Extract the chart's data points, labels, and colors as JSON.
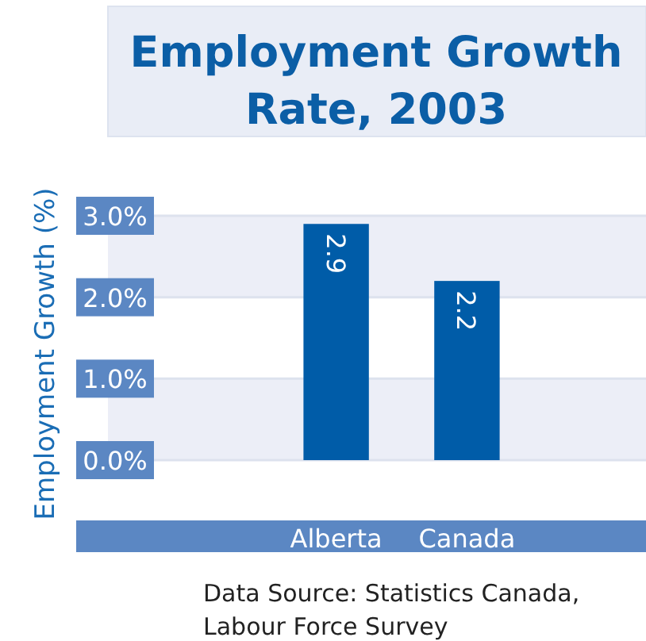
{
  "chart_data": {
    "type": "bar",
    "title": "Employment Growth Rate, 2003",
    "ylabel": "Employment Growth (%)",
    "categories": [
      "Alberta",
      "Canada"
    ],
    "values": [
      2.9,
      2.2
    ],
    "color": "#005ca8",
    "ylim": [
      0,
      3
    ],
    "yticks": [
      {
        "value": 0,
        "label": "0.0%"
      },
      {
        "value": 1,
        "label": "1.0%"
      },
      {
        "value": 2,
        "label": "2.0%"
      },
      {
        "value": 3,
        "label": "3.0%"
      }
    ],
    "grid": "y",
    "data_labels": true,
    "annotations": [
      "Data Source: Statistics Canada, Labour Force Survey"
    ]
  }
}
